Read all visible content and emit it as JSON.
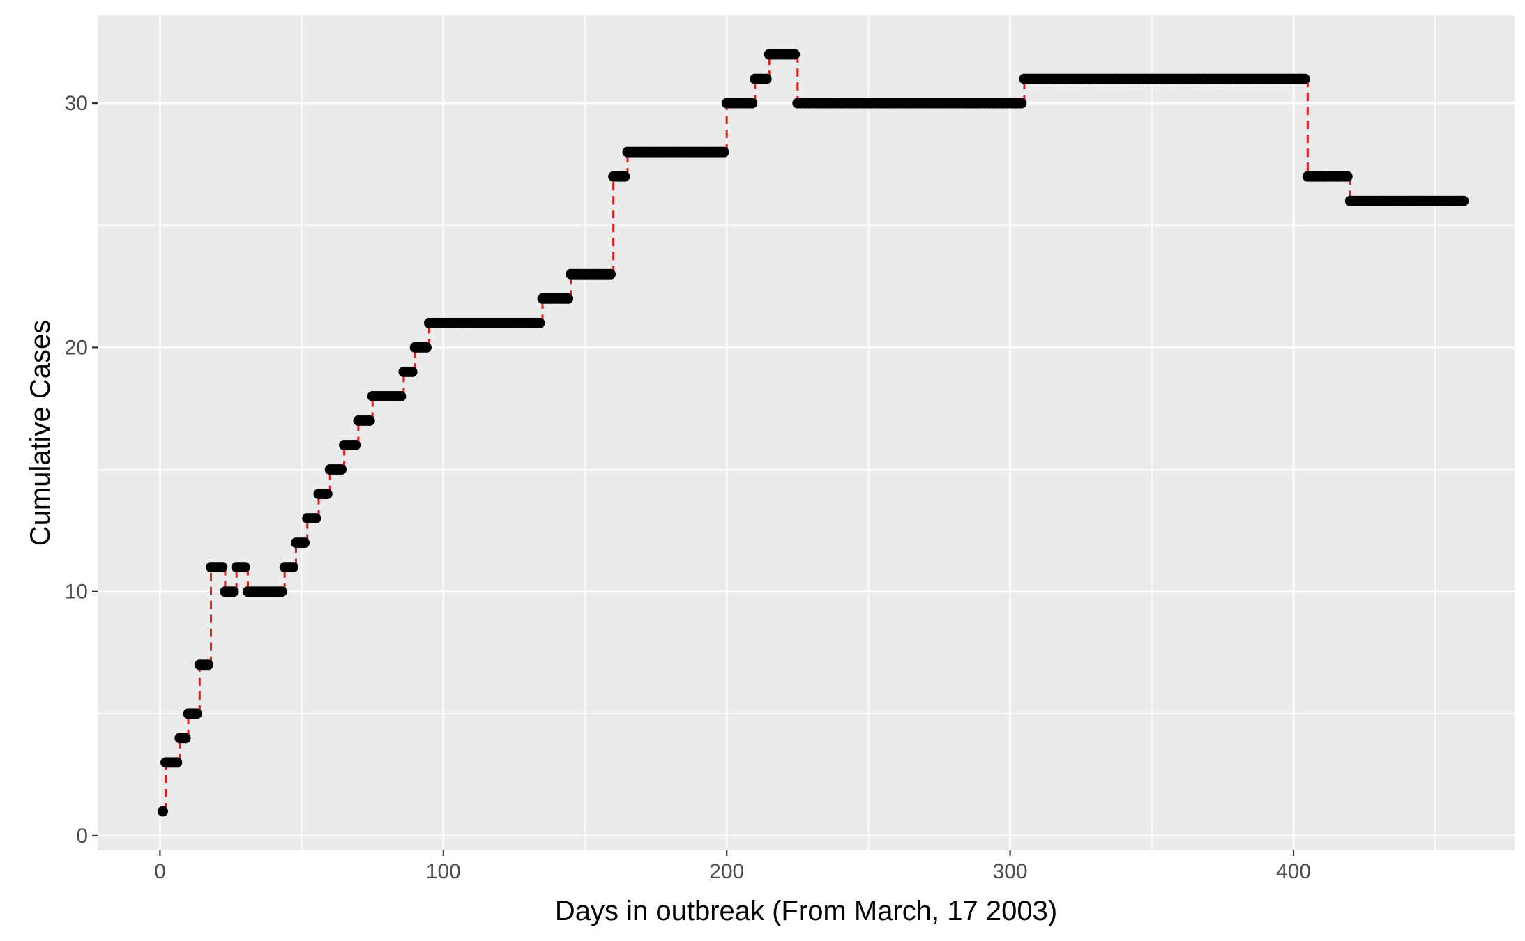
{
  "chart_data": {
    "type": "scatter",
    "title": "",
    "xlabel": "Days in outbreak (From March, 17 2003)",
    "ylabel": "Cumulative Cases",
    "xlim": [
      -22,
      478
    ],
    "ylim": [
      -0.6,
      33.6
    ],
    "x_ticks": [
      0,
      100,
      200,
      300,
      400
    ],
    "x_tick_labels": [
      "0",
      "100",
      "200",
      "300",
      "400"
    ],
    "y_ticks": [
      0,
      10,
      20,
      30
    ],
    "y_tick_labels": [
      "0",
      "10",
      "20",
      "30"
    ],
    "grid": true,
    "legend": "none",
    "colors": {
      "panel_background": "#ebebeb",
      "grid": "#ffffff",
      "points": "#000000",
      "connector": "#e41a1c"
    },
    "series": [
      {
        "style": "points",
        "steps": [
          {
            "x": [
              1,
              1
            ],
            "y": 1
          },
          {
            "x": [
              2,
              6
            ],
            "y": 3
          },
          {
            "x": [
              7,
              9
            ],
            "y": 4
          },
          {
            "x": [
              10,
              13
            ],
            "y": 5
          },
          {
            "x": [
              14,
              17
            ],
            "y": 7
          },
          {
            "x": [
              18,
              22
            ],
            "y": 11
          },
          {
            "x": [
              23,
              26
            ],
            "y": 10
          },
          {
            "x": [
              27,
              30
            ],
            "y": 11
          },
          {
            "x": [
              31,
              43
            ],
            "y": 10
          },
          {
            "x": [
              44,
              47
            ],
            "y": 11
          },
          {
            "x": [
              48,
              51
            ],
            "y": 12
          },
          {
            "x": [
              52,
              55
            ],
            "y": 13
          },
          {
            "x": [
              56,
              59
            ],
            "y": 14
          },
          {
            "x": [
              60,
              64
            ],
            "y": 15
          },
          {
            "x": [
              65,
              69
            ],
            "y": 16
          },
          {
            "x": [
              70,
              74
            ],
            "y": 17
          },
          {
            "x": [
              75,
              85
            ],
            "y": 18
          },
          {
            "x": [
              86,
              89
            ],
            "y": 19
          },
          {
            "x": [
              90,
              94
            ],
            "y": 20
          },
          {
            "x": [
              95,
              134
            ],
            "y": 21
          },
          {
            "x": [
              135,
              144
            ],
            "y": 22
          },
          {
            "x": [
              145,
              159
            ],
            "y": 23
          },
          {
            "x": [
              160,
              164
            ],
            "y": 27
          },
          {
            "x": [
              165,
              199
            ],
            "y": 28
          },
          {
            "x": [
              200,
              209
            ],
            "y": 30
          },
          {
            "x": [
              210,
              214
            ],
            "y": 31
          },
          {
            "x": [
              215,
              224
            ],
            "y": 32
          },
          {
            "x": [
              225,
              304
            ],
            "y": 30
          },
          {
            "x": [
              305,
              404
            ],
            "y": 31
          },
          {
            "x": [
              405,
              419
            ],
            "y": 27
          },
          {
            "x": [
              420,
              460
            ],
            "y": 26
          }
        ]
      },
      {
        "style": "dashed-vertical-connectors",
        "comment_free": true
      }
    ]
  }
}
